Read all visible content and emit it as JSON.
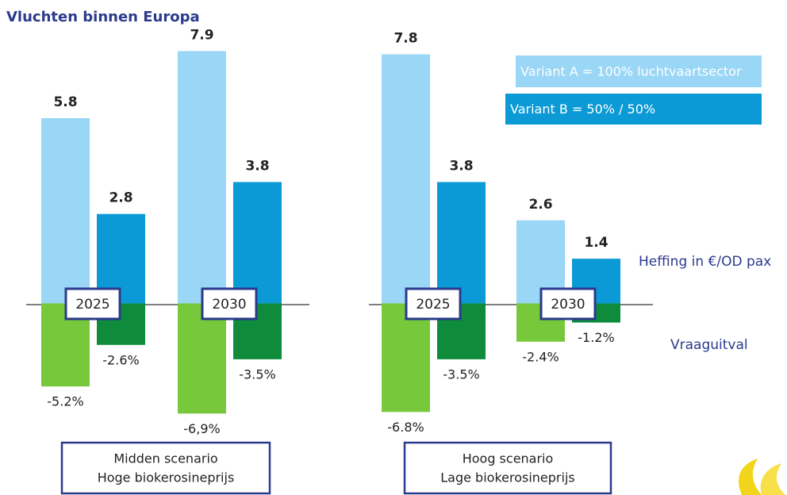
{
  "chart_data": {
    "type": "bar",
    "title": "Vluchten binnen Europa",
    "categories": [
      "2025",
      "2030",
      "2025",
      "2030"
    ],
    "series": [
      {
        "name": "Variant A = 100% luchtvaartsector",
        "color": "#9ad6f6",
        "values": [
          5.8,
          7.9,
          7.8,
          2.6
        ]
      },
      {
        "name": "Variant B = 50% / 50%",
        "color": "#0b9ad6",
        "values": [
          2.8,
          3.8,
          3.8,
          1.4
        ]
      }
    ],
    "demand_series": [
      {
        "color": "#78c83c",
        "axis": "y2",
        "values": [
          -5.2,
          -6.9,
          -6.8,
          -2.4
        ],
        "value_labels": [
          "-5.2%",
          "-6,9%",
          "-6.8%",
          "-2.4%"
        ]
      },
      {
        "color": "#0e8b3b",
        "axis": "y2",
        "values": [
          -2.6,
          -3.5,
          -3.5,
          -1.2
        ],
        "value_labels": [
          "-2.6%",
          "-3.5%",
          "-3.5%",
          "-1.2%"
        ]
      }
    ],
    "ylim": [
      -6,
      9.5
    ],
    "y2lim": [
      -12,
      19
    ],
    "annotations": [
      "Heffing in €/OD pax",
      "Vraaguitval"
    ],
    "scenarios": [
      [
        "Midden scenario",
        "Hoge biokerosineprijs"
      ],
      [
        "Hoog scenario",
        "Lage biokerosineprijs"
      ]
    ]
  }
}
